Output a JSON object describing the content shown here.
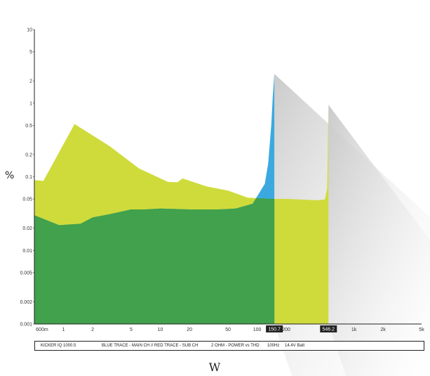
{
  "chart_data": {
    "type": "area",
    "scale": "log-log",
    "xlabel": "W",
    "ylabel": "%",
    "xlim": [
      0.5,
      5000
    ],
    "ylim": [
      0.001,
      10
    ],
    "x_ticks": [
      {
        "label": "600m",
        "value": 0.6
      },
      {
        "label": "1",
        "value": 1
      },
      {
        "label": "2",
        "value": 2
      },
      {
        "label": "5",
        "value": 5
      },
      {
        "label": "10",
        "value": 10
      },
      {
        "label": "20",
        "value": 20
      },
      {
        "label": "50",
        "value": 50
      },
      {
        "label": "100",
        "value": 100
      },
      {
        "label": "200",
        "value": 200
      },
      {
        "label": "1k",
        "value": 1000
      },
      {
        "label": "2k",
        "value": 2000
      },
      {
        "label": "5k",
        "value": 5000
      }
    ],
    "y_ticks": [
      {
        "label": "10",
        "value": 10
      },
      {
        "label": "5",
        "value": 5
      },
      {
        "label": "2",
        "value": 2
      },
      {
        "label": "1",
        "value": 1
      },
      {
        "label": "0.5",
        "value": 0.5
      },
      {
        "label": "0.2",
        "value": 0.2
      },
      {
        "label": "0.1",
        "value": 0.1
      },
      {
        "label": "0.05",
        "value": 0.05
      },
      {
        "label": "0.02",
        "value": 0.02
      },
      {
        "label": "0.01",
        "value": 0.01
      },
      {
        "label": "0.005",
        "value": 0.005
      },
      {
        "label": "0.002",
        "value": 0.002
      },
      {
        "label": "0.001",
        "value": 0.001
      }
    ],
    "highlights": [
      {
        "label": "150.7",
        "value": 150.7
      },
      {
        "label": "546.2",
        "value": 546.2
      }
    ],
    "series": [
      {
        "color": "#cfdb3b",
        "x": [
          0.5,
          0.62,
          1.3,
          3,
          6,
          12,
          15,
          17,
          30,
          50,
          80,
          150,
          200,
          300,
          400,
          500,
          530,
          546.2
        ],
        "y": [
          0.09,
          0.088,
          0.52,
          0.26,
          0.13,
          0.085,
          0.084,
          0.095,
          0.074,
          0.065,
          0.052,
          0.05,
          0.05,
          0.049,
          0.048,
          0.049,
          0.07,
          0.95
        ]
      },
      {
        "color": "#3ba9df",
        "x": [
          0.5,
          0.9,
          1.5,
          2,
          3,
          5,
          7,
          10,
          20,
          40,
          60,
          90,
          120,
          130,
          140,
          145,
          150.7
        ],
        "y": [
          0.03,
          0.022,
          0.023,
          0.028,
          0.031,
          0.036,
          0.036,
          0.037,
          0.036,
          0.036,
          0.037,
          0.043,
          0.08,
          0.15,
          0.5,
          1.2,
          2.5
        ]
      }
    ]
  },
  "footer": {
    "product": "KICKER  IQ 1000.5",
    "traces": "BLUE TRACE - MAIN CH // RED TRACE - SUB CH",
    "test": "2 OHM - POWER vs THD",
    "freq": "100Hz",
    "voltage": "14.4V Batt"
  }
}
